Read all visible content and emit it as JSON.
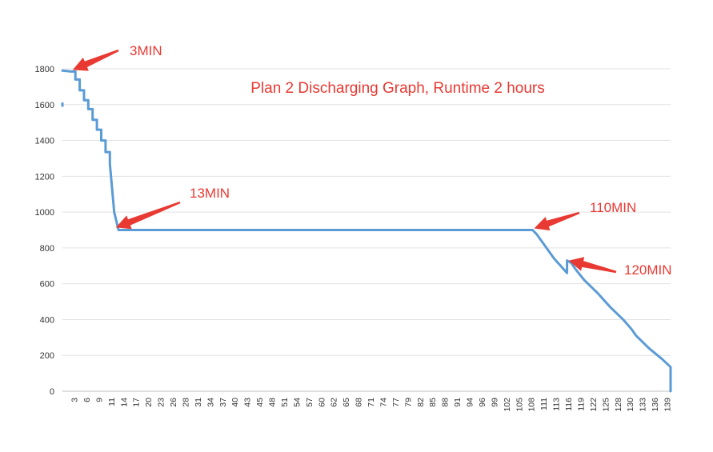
{
  "chart_data": {
    "type": "line",
    "title": "Plan 2  Discharging Graph, Runtime 2 hours",
    "xlabel": "",
    "ylabel": "",
    "ylim": [
      0,
      1800
    ],
    "y_ticks": [
      0,
      200,
      400,
      600,
      800,
      1000,
      1200,
      1400,
      1600,
      1800
    ],
    "x_tick_labels": [
      "3",
      "6",
      "9",
      "11",
      "14",
      "17",
      "20",
      "23",
      "26",
      "28",
      "31",
      "34",
      "37",
      "40",
      "43",
      "45",
      "48",
      "51",
      "54",
      "57",
      "60",
      "62",
      "65",
      "68",
      "71",
      "74",
      "77",
      "79",
      "82",
      "85",
      "88",
      "91",
      "94",
      "96",
      "99",
      "102",
      "105",
      "108",
      "111",
      "113",
      "116",
      "119",
      "122",
      "125",
      "128",
      "130",
      "133",
      "136",
      "139"
    ],
    "grid": "horizontal",
    "legend": "none",
    "line_color": "#5b9bd5",
    "annotation_color": "#e83a33",
    "series": [
      {
        "x": [
          1,
          3,
          4,
          4,
          5,
          5,
          6,
          6,
          7,
          7,
          8,
          8,
          9,
          9,
          10,
          10,
          11,
          11,
          12,
          12,
          13,
          14,
          110,
          111,
          115,
          118,
          118,
          119,
          120,
          122,
          125,
          128,
          131,
          133,
          134,
          137,
          140,
          142,
          142
        ],
        "y": [
          1790,
          1785,
          1785,
          1740,
          1740,
          1680,
          1680,
          1625,
          1625,
          1575,
          1575,
          1515,
          1515,
          1460,
          1460,
          1400,
          1400,
          1335,
          1335,
          1270,
          1000,
          900,
          900,
          875,
          740,
          660,
          730,
          715,
          680,
          620,
          550,
          470,
          400,
          345,
          310,
          240,
          180,
          135,
          0
        ]
      }
    ],
    "annotations": [
      {
        "text": "3MIN",
        "x": 3,
        "y": 1785
      },
      {
        "text": "13MIN",
        "x": 13,
        "y": 905
      },
      {
        "text": "110MIN",
        "x": 110,
        "y": 900
      },
      {
        "text": "120MIN",
        "x": 118,
        "y": 720
      }
    ]
  }
}
